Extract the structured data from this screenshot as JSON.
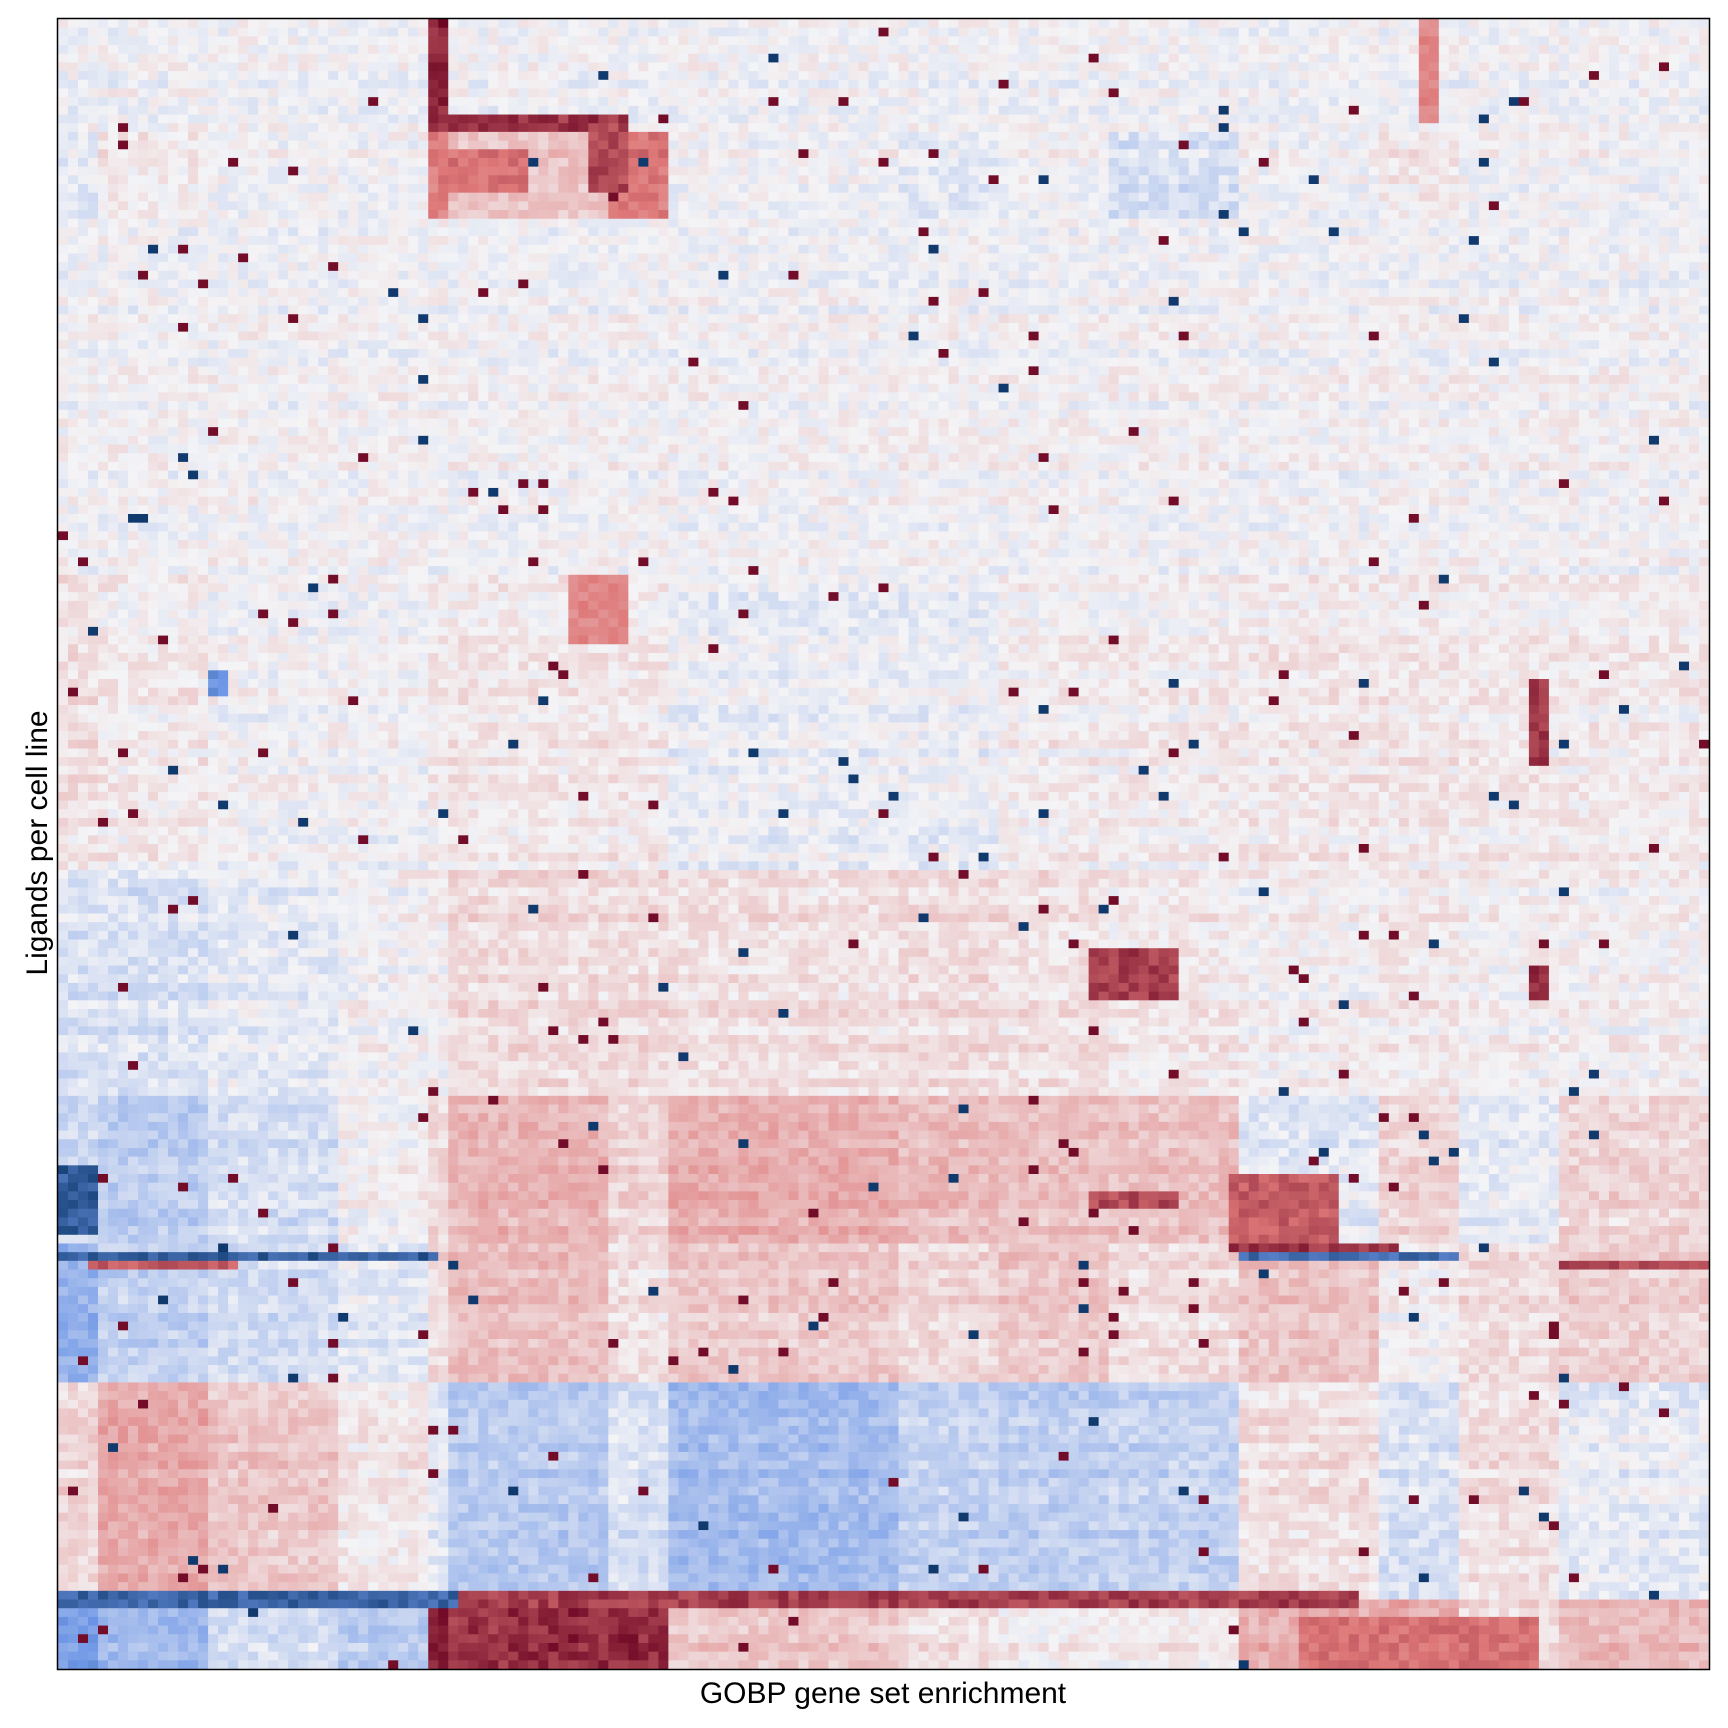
{
  "chart_data": {
    "type": "heatmap",
    "title": "",
    "xlabel": "GOBP gene set enrichment",
    "ylabel": "Ligands per cell line",
    "x_tick_labels": [],
    "y_tick_labels": [],
    "legend": "none",
    "grid": false,
    "colorscale": {
      "negative": "#053061",
      "mid_negative": "#4a7bd0",
      "neutral": "#f4f4f6",
      "mid_positive": "#d6604d",
      "positive": "#67001f"
    },
    "row_blocks": [
      {
        "rows": "1-13",
        "trend": "neutral"
      },
      {
        "rows": "14-23",
        "trend": "mixed, strong positive in columns 32-40 and 44-50"
      },
      {
        "rows": "24-64",
        "trend": "near neutral"
      },
      {
        "rows": "65-98",
        "trend": "weak mixed"
      },
      {
        "rows": "99-123",
        "trend": "weak negative left, weak positive middle"
      },
      {
        "rows": "124-140",
        "trend": "negative left, positive middle"
      },
      {
        "rows": "141-156",
        "trend": "negative left, positive right"
      },
      {
        "rows": "157-181",
        "trend": "positive left, negative middle"
      },
      {
        "rows": "182-190",
        "trend": "strong negative left, strong positive middle"
      }
    ]
  }
}
